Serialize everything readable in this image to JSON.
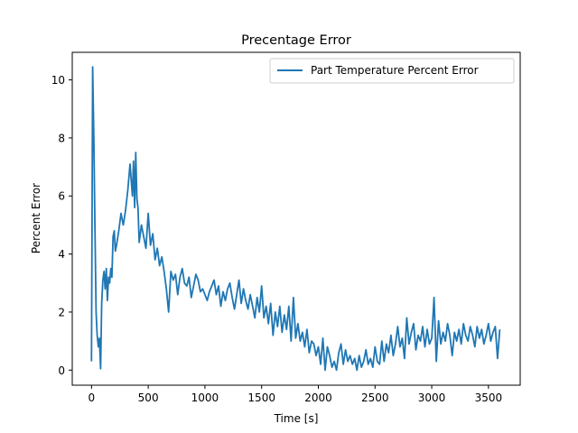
{
  "chart_data": {
    "type": "line",
    "title": "Precentage Error",
    "xlabel": "Time [s]",
    "ylabel": "Percent Error",
    "xlim": [
      -170,
      3780
    ],
    "ylim": [
      -0.52,
      10.95
    ],
    "xticks": [
      0,
      500,
      1000,
      1500,
      2000,
      2500,
      3000,
      3500
    ],
    "yticks": [
      0,
      2,
      4,
      6,
      8,
      10
    ],
    "grid": false,
    "legend_position": "top-right",
    "colors": {
      "series": "#1f77b4"
    },
    "series": [
      {
        "name": "Part Temperature Percent Error",
        "x": [
          0,
          10,
          20,
          30,
          40,
          50,
          60,
          70,
          80,
          90,
          100,
          110,
          120,
          130,
          140,
          150,
          160,
          170,
          180,
          190,
          200,
          210,
          220,
          240,
          260,
          280,
          300,
          320,
          340,
          360,
          370,
          380,
          390,
          400,
          410,
          420,
          440,
          460,
          480,
          500,
          520,
          540,
          560,
          580,
          600,
          620,
          640,
          660,
          680,
          700,
          720,
          740,
          760,
          780,
          800,
          820,
          840,
          860,
          880,
          900,
          920,
          940,
          960,
          980,
          1000,
          1020,
          1040,
          1060,
          1080,
          1100,
          1120,
          1140,
          1160,
          1180,
          1200,
          1220,
          1240,
          1260,
          1280,
          1300,
          1320,
          1340,
          1360,
          1380,
          1400,
          1420,
          1440,
          1460,
          1480,
          1500,
          1520,
          1540,
          1560,
          1580,
          1600,
          1620,
          1640,
          1660,
          1680,
          1700,
          1720,
          1740,
          1760,
          1780,
          1800,
          1820,
          1840,
          1860,
          1880,
          1900,
          1920,
          1940,
          1960,
          1980,
          2000,
          2020,
          2040,
          2060,
          2080,
          2100,
          2120,
          2140,
          2160,
          2180,
          2200,
          2220,
          2240,
          2260,
          2280,
          2300,
          2320,
          2340,
          2360,
          2380,
          2400,
          2420,
          2440,
          2460,
          2480,
          2500,
          2520,
          2540,
          2560,
          2580,
          2600,
          2620,
          2640,
          2660,
          2680,
          2700,
          2720,
          2740,
          2760,
          2780,
          2800,
          2820,
          2840,
          2860,
          2880,
          2900,
          2920,
          2940,
          2960,
          2980,
          3000,
          3020,
          3040,
          3060,
          3080,
          3100,
          3120,
          3140,
          3160,
          3180,
          3200,
          3220,
          3240,
          3260,
          3280,
          3300,
          3320,
          3340,
          3360,
          3380,
          3400,
          3420,
          3440,
          3460,
          3480,
          3500,
          3520,
          3540,
          3560,
          3580,
          3600
        ],
        "y": [
          0.3,
          10.45,
          8.0,
          5.0,
          2.0,
          1.2,
          0.8,
          1.1,
          0.05,
          2.3,
          3.1,
          3.4,
          2.8,
          3.5,
          2.4,
          3.2,
          3.0,
          3.5,
          3.2,
          4.6,
          4.8,
          4.1,
          4.3,
          4.8,
          5.4,
          5.0,
          5.5,
          6.2,
          7.1,
          6.0,
          7.2,
          5.6,
          7.5,
          5.9,
          5.6,
          4.4,
          5.0,
          4.6,
          4.2,
          5.4,
          4.3,
          4.7,
          3.8,
          4.2,
          3.6,
          3.9,
          3.4,
          2.8,
          2.0,
          3.4,
          3.1,
          3.3,
          2.6,
          3.2,
          3.5,
          3.0,
          2.9,
          3.2,
          2.5,
          2.9,
          3.3,
          3.1,
          2.7,
          2.8,
          2.6,
          2.4,
          2.7,
          2.9,
          3.1,
          2.6,
          2.9,
          2.2,
          2.7,
          2.4,
          2.8,
          3.0,
          2.5,
          2.1,
          2.6,
          3.1,
          2.3,
          2.8,
          2.4,
          2.1,
          2.6,
          2.2,
          1.8,
          2.5,
          2.0,
          2.9,
          1.8,
          2.2,
          1.6,
          2.3,
          1.2,
          2.0,
          1.5,
          2.2,
          1.3,
          1.9,
          1.4,
          2.2,
          1.0,
          2.5,
          1.1,
          1.6,
          1.0,
          1.3,
          0.8,
          1.4,
          0.6,
          1.0,
          0.9,
          0.5,
          0.8,
          0.2,
          1.1,
          0.0,
          0.8,
          0.5,
          0.1,
          0.3,
          0.0,
          0.6,
          0.9,
          0.2,
          0.7,
          0.3,
          0.5,
          0.2,
          0.4,
          0.0,
          0.5,
          0.1,
          0.3,
          0.7,
          0.2,
          0.4,
          0.1,
          0.8,
          0.3,
          0.2,
          1.0,
          0.3,
          0.9,
          0.6,
          1.2,
          0.5,
          0.9,
          1.5,
          0.8,
          1.1,
          0.4,
          1.8,
          0.9,
          1.3,
          1.6,
          0.7,
          1.2,
          1.0,
          1.5,
          0.8,
          1.4,
          0.9,
          1.1,
          2.5,
          0.3,
          1.7,
          0.9,
          1.3,
          1.0,
          1.6,
          1.2,
          0.5,
          1.3,
          1.0,
          1.4,
          0.9,
          1.6,
          1.2,
          1.0,
          1.5,
          1.2,
          0.8,
          1.5,
          1.1,
          1.4,
          0.9,
          1.2,
          1.6,
          1.0,
          1.3,
          1.5,
          0.4,
          1.4
        ]
      }
    ]
  }
}
